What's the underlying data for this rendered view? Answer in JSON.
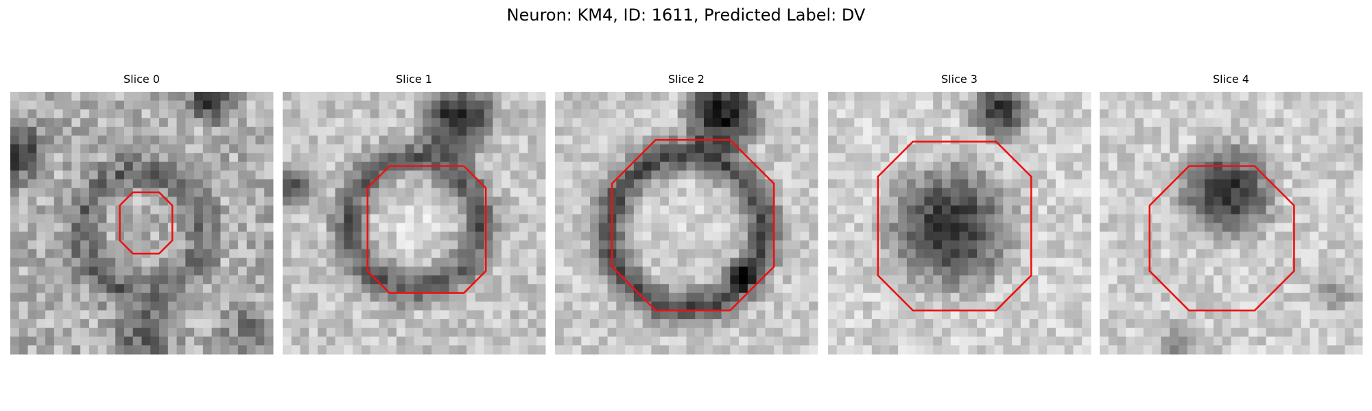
{
  "title": "Neuron: KM4, ID: 1611, Predicted Label: DV",
  "panels": [
    {
      "title": "Slice 0"
    },
    {
      "title": "Slice 1"
    },
    {
      "title": "Slice 2"
    },
    {
      "title": "Slice 3"
    },
    {
      "title": "Slice 4"
    }
  ]
}
